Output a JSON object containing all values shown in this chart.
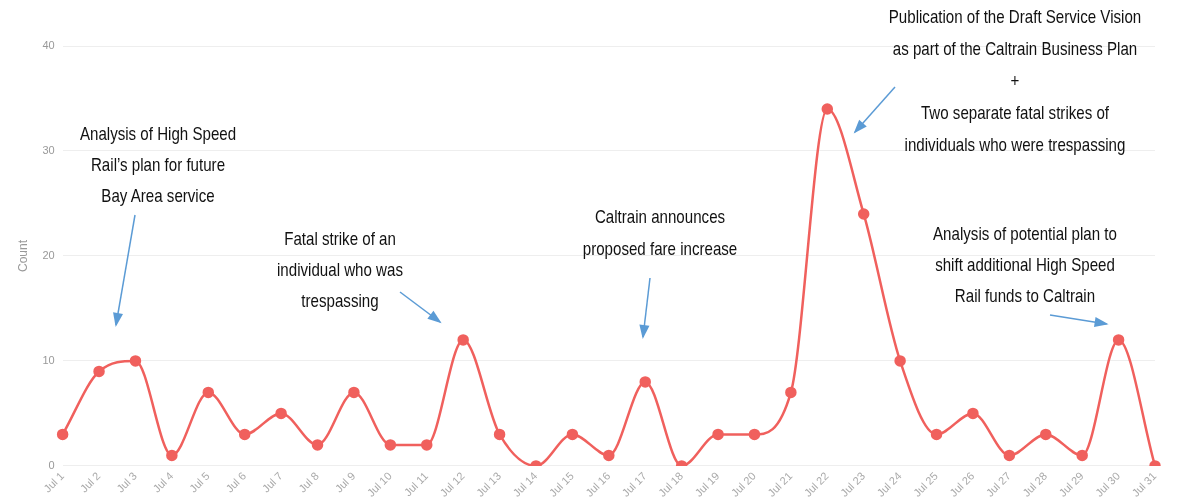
{
  "chart_data": {
    "type": "line",
    "ylabel": "Count",
    "categories": [
      "Jul 1",
      "Jul 2",
      "Jul 3",
      "Jul 4",
      "Jul 5",
      "Jul 6",
      "Jul 7",
      "Jul 8",
      "Jul 9",
      "Jul 10",
      "Jul 11",
      "Jul 12",
      "Jul 13",
      "Jul 14",
      "Jul 15",
      "Jul 16",
      "Jul 17",
      "Jul 18",
      "Jul 19",
      "Jul 20",
      "Jul 21",
      "Jul 22",
      "Jul 23",
      "Jul 24",
      "Jul 25",
      "Jul 26",
      "Jul 27",
      "Jul 28",
      "Jul 29",
      "Jul 30",
      "Jul 31"
    ],
    "series": [
      {
        "color": "#f0605d",
        "values": [
          3,
          9,
          10,
          1,
          7,
          3,
          5,
          2,
          7,
          2,
          2,
          12,
          3,
          0,
          3,
          1,
          8,
          0,
          3,
          3,
          7,
          34,
          24,
          10,
          3,
          5,
          1,
          3,
          1,
          12,
          0
        ]
      }
    ],
    "ylim": [
      0,
      40
    ],
    "yticks": [
      0,
      10,
      20,
      30,
      40
    ],
    "grid": "y",
    "legend": false,
    "marker": "circle",
    "line_style": "solid",
    "annotations": [
      "Analysis of High Speed\nRail’s plan for future\nBay Area service",
      "Fatal strike of an\nindividual who was\ntrespassing",
      "Caltrain announces\nproposed fare increase",
      "Publication of the Draft Service Vision\nas part of the Caltrain Business Plan\n+\nTwo separate fatal strikes of\nindividuals who were trespassing",
      {
        "text": "Analysis of potential plan to\nshift additional High Speed\nRail funds to Caltrain",
        "x": "Jul 30",
        "y": 12
      }
    ]
  }
}
